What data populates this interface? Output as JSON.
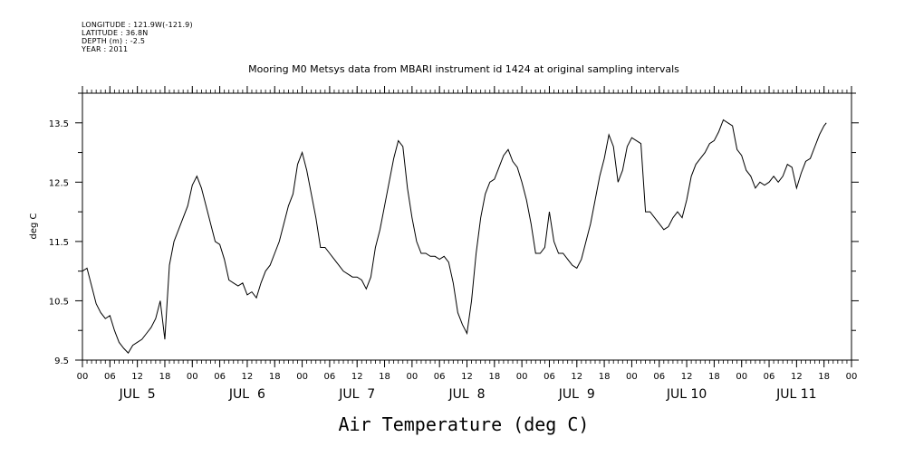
{
  "header": {
    "longitude": "LONGITUDE : 121.9W(-121.9)",
    "latitude": "LATITUDE : 36.8N",
    "depth": "DEPTH (m) : -2.5",
    "year": "YEAR : 2011"
  },
  "chart_data": {
    "type": "line",
    "title": "Mooring M0 Metsys data from MBARI instrument id 1424 at original sampling intervals",
    "xlabel": "Air Temperature (deg C)",
    "ylabel": "deg C",
    "ylim": [
      9.5,
      14.0
    ],
    "yticks": [
      9.5,
      10.5,
      11.5,
      12.5,
      13.5
    ],
    "ytick_labels": [
      "9.5",
      "10.5",
      "11.5",
      "12.5",
      "13.5"
    ],
    "xlim_hours": [
      0,
      168
    ],
    "xtick_labels": [
      "00",
      "06",
      "12",
      "18",
      "00",
      "06",
      "12",
      "18",
      "00",
      "06",
      "12",
      "18",
      "00",
      "06",
      "12",
      "18",
      "00",
      "06",
      "12",
      "18",
      "00",
      "06",
      "12",
      "18",
      "00",
      "06",
      "12",
      "18",
      "00"
    ],
    "day_labels": [
      "JUL  5",
      "JUL  6",
      "JUL  7",
      "JUL  8",
      "JUL  9",
      "JUL 10",
      "JUL 11"
    ],
    "grid": false,
    "series": [
      {
        "points": [
          [
            0,
            11.0
          ],
          [
            1,
            11.05
          ],
          [
            2,
            10.75
          ],
          [
            3,
            10.45
          ],
          [
            4,
            10.3
          ],
          [
            5,
            10.2
          ],
          [
            6,
            10.25
          ],
          [
            7,
            10.0
          ],
          [
            8,
            9.8
          ],
          [
            9,
            9.7
          ],
          [
            10,
            9.62
          ],
          [
            11,
            9.75
          ],
          [
            12,
            9.8
          ],
          [
            13,
            9.85
          ],
          [
            14,
            9.95
          ],
          [
            15,
            10.05
          ],
          [
            16,
            10.2
          ],
          [
            17,
            10.5
          ],
          [
            18,
            9.85
          ],
          [
            19,
            11.1
          ],
          [
            20,
            11.5
          ],
          [
            21,
            11.7
          ],
          [
            22,
            11.9
          ],
          [
            23,
            12.1
          ],
          [
            24,
            12.45
          ],
          [
            25,
            12.6
          ],
          [
            26,
            12.4
          ],
          [
            27,
            12.1
          ],
          [
            28,
            11.8
          ],
          [
            29,
            11.5
          ],
          [
            30,
            11.45
          ],
          [
            31,
            11.2
          ],
          [
            32,
            10.85
          ],
          [
            33,
            10.8
          ],
          [
            34,
            10.75
          ],
          [
            35,
            10.8
          ],
          [
            36,
            10.6
          ],
          [
            37,
            10.65
          ],
          [
            38,
            10.55
          ],
          [
            39,
            10.8
          ],
          [
            40,
            11.0
          ],
          [
            41,
            11.1
          ],
          [
            42,
            11.3
          ],
          [
            43,
            11.5
          ],
          [
            44,
            11.8
          ],
          [
            45,
            12.1
          ],
          [
            46,
            12.3
          ],
          [
            47,
            12.8
          ],
          [
            48,
            13.0
          ],
          [
            49,
            12.7
          ],
          [
            50,
            12.3
          ],
          [
            51,
            11.9
          ],
          [
            52,
            11.4
          ],
          [
            53,
            11.4
          ],
          [
            54,
            11.3
          ],
          [
            55,
            11.2
          ],
          [
            56,
            11.1
          ],
          [
            57,
            11.0
          ],
          [
            58,
            10.95
          ],
          [
            59,
            10.9
          ],
          [
            60,
            10.9
          ],
          [
            61,
            10.85
          ],
          [
            62,
            10.7
          ],
          [
            63,
            10.9
          ],
          [
            64,
            11.4
          ],
          [
            65,
            11.7
          ],
          [
            66,
            12.1
          ],
          [
            67,
            12.5
          ],
          [
            68,
            12.9
          ],
          [
            69,
            13.2
          ],
          [
            70,
            13.1
          ],
          [
            71,
            12.4
          ],
          [
            72,
            11.9
          ],
          [
            73,
            11.5
          ],
          [
            74,
            11.3
          ],
          [
            75,
            11.3
          ],
          [
            76,
            11.25
          ],
          [
            77,
            11.25
          ],
          [
            78,
            11.2
          ],
          [
            79,
            11.25
          ],
          [
            80,
            11.15
          ],
          [
            81,
            10.8
          ],
          [
            82,
            10.3
          ],
          [
            83,
            10.1
          ],
          [
            84,
            9.95
          ],
          [
            85,
            10.5
          ],
          [
            86,
            11.3
          ],
          [
            87,
            11.9
          ],
          [
            88,
            12.3
          ],
          [
            89,
            12.5
          ],
          [
            90,
            12.55
          ],
          [
            91,
            12.75
          ],
          [
            92,
            12.95
          ],
          [
            93,
            13.05
          ],
          [
            94,
            12.85
          ],
          [
            95,
            12.75
          ],
          [
            96,
            12.5
          ],
          [
            97,
            12.2
          ],
          [
            98,
            11.8
          ],
          [
            99,
            11.3
          ],
          [
            100,
            11.3
          ],
          [
            101,
            11.4
          ],
          [
            102,
            12.0
          ],
          [
            103,
            11.5
          ],
          [
            104,
            11.3
          ],
          [
            105,
            11.3
          ],
          [
            106,
            11.2
          ],
          [
            107,
            11.1
          ],
          [
            108,
            11.05
          ],
          [
            109,
            11.2
          ],
          [
            110,
            11.5
          ],
          [
            111,
            11.8
          ],
          [
            112,
            12.2
          ],
          [
            113,
            12.6
          ],
          [
            114,
            12.9
          ],
          [
            115,
            13.3
          ],
          [
            116,
            13.1
          ],
          [
            117,
            12.5
          ],
          [
            118,
            12.7
          ],
          [
            119,
            13.1
          ],
          [
            120,
            13.25
          ],
          [
            121,
            13.2
          ],
          [
            122,
            13.15
          ],
          [
            123,
            12.0
          ],
          [
            124,
            12.0
          ],
          [
            125,
            11.9
          ],
          [
            126,
            11.8
          ],
          [
            127,
            11.7
          ],
          [
            128,
            11.75
          ],
          [
            129,
            11.9
          ],
          [
            130,
            12.0
          ],
          [
            131,
            11.9
          ],
          [
            132,
            12.2
          ],
          [
            133,
            12.6
          ],
          [
            134,
            12.8
          ],
          [
            135,
            12.9
          ],
          [
            136,
            13.0
          ],
          [
            137,
            13.15
          ],
          [
            138,
            13.2
          ],
          [
            139,
            13.35
          ],
          [
            140,
            13.55
          ],
          [
            141,
            13.5
          ],
          [
            142,
            13.45
          ],
          [
            143,
            13.05
          ],
          [
            144,
            12.95
          ],
          [
            145,
            12.7
          ],
          [
            146,
            12.6
          ],
          [
            147,
            12.4
          ],
          [
            148,
            12.5
          ],
          [
            149,
            12.45
          ],
          [
            150,
            12.5
          ],
          [
            151,
            12.6
          ],
          [
            152,
            12.5
          ],
          [
            153,
            12.6
          ],
          [
            154,
            12.8
          ],
          [
            155,
            12.75
          ],
          [
            156,
            12.4
          ],
          [
            157,
            12.65
          ],
          [
            158,
            12.85
          ],
          [
            159,
            12.9
          ],
          [
            160,
            13.1
          ],
          [
            161,
            13.3
          ],
          [
            162,
            13.45
          ],
          [
            162.5,
            13.5
          ]
        ]
      }
    ]
  }
}
